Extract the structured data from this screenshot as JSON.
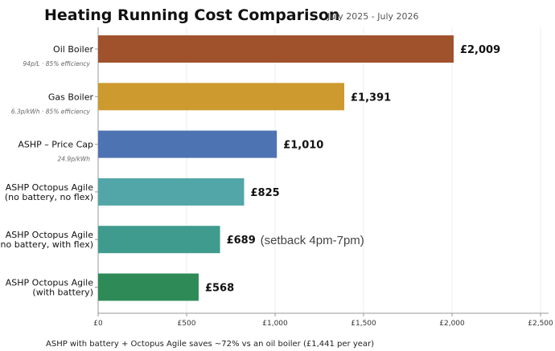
{
  "title": "Heating Running Cost Comparison",
  "subtitle": "July 2025 - July 2026",
  "footnote": "ASHP with battery + Octopus Agile saves ~72% vs an oil boiler (£1,441 per year)",
  "chart_data": {
    "type": "bar",
    "orientation": "horizontal",
    "title": "Heating Running Cost Comparison",
    "subtitle": "July 2025 - July 2026",
    "xlabel": "",
    "ylabel": "",
    "xlim": [
      0,
      2500
    ],
    "xticks": [
      0,
      500,
      1000,
      1500,
      2000,
      2500
    ],
    "xtick_labels": [
      "£0",
      "£500",
      "£1,000",
      "£1,500",
      "£2,000",
      "£2,500"
    ],
    "grid": "vertical",
    "categories": [
      {
        "lines": [
          "Oil Boiler"
        ],
        "sub": "94p/L  ·  85% efficiency",
        "value": 2009,
        "value_label": "£2,009",
        "note": "",
        "color": "#a0522d"
      },
      {
        "lines": [
          "Gas Boiler"
        ],
        "sub": "6.3p/kWh  ·  85% efficiency",
        "value": 1391,
        "value_label": "£1,391",
        "note": "",
        "color": "#cc9a2e"
      },
      {
        "lines": [
          "ASHP – Price Cap"
        ],
        "sub": "24.9p/kWh",
        "value": 1010,
        "value_label": "£1,010",
        "note": "",
        "color": "#4e73b3"
      },
      {
        "lines": [
          "ASHP Octopus Agile",
          "(no battery, no flex)"
        ],
        "sub": "",
        "value": 825,
        "value_label": "£825",
        "note": "",
        "color": "#52a6a8"
      },
      {
        "lines": [
          "ASHP Octopus Agile",
          "(no battery, with flex)"
        ],
        "sub": "",
        "value": 689,
        "value_label": "£689",
        "note": "(setback 4pm-7pm)",
        "color": "#3f9b8d"
      },
      {
        "lines": [
          "ASHP Octopus Agile",
          "(with battery)"
        ],
        "sub": "",
        "value": 568,
        "value_label": "£568",
        "note": "",
        "color": "#2e8b57"
      }
    ]
  }
}
